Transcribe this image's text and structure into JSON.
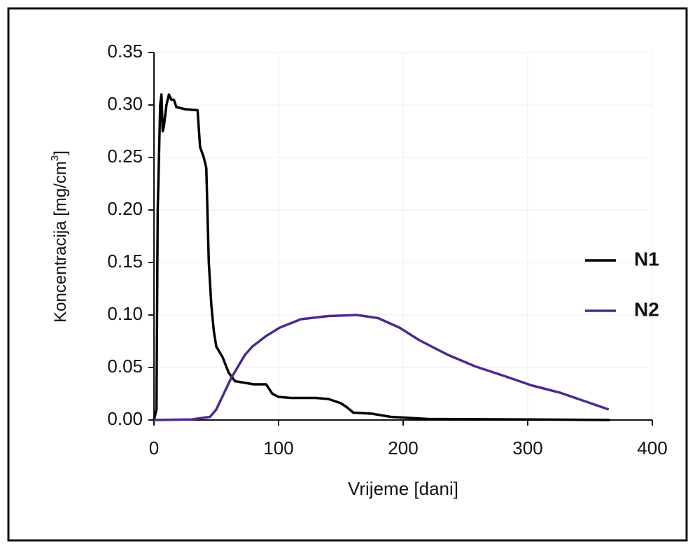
{
  "chart_data": {
    "type": "line",
    "xlabel": "Vrijeme [dani]",
    "ylabel": [
      "Koncentracija [mg/cm",
      "3",
      "]"
    ],
    "xlim": [
      0,
      400
    ],
    "xticks": [
      0,
      100,
      200,
      300,
      400
    ],
    "ylim": [
      0,
      0.35
    ],
    "yticks": [
      {
        "value": 0,
        "label": "0.00"
      },
      0.05,
      {
        "value": 0.1,
        "label": "0.10"
      },
      0.15,
      {
        "value": 0.2,
        "label": "0.20"
      },
      0.25,
      {
        "value": 0.3,
        "label": "0.30"
      },
      0.35
    ],
    "grid": true,
    "legend": "right",
    "series": [
      {
        "name": "N1",
        "color": "#000000",
        "x": [
          0,
          2,
          3,
          5,
          6,
          7,
          8,
          10,
          12,
          14,
          16,
          18,
          25,
          35,
          37,
          40,
          42,
          44,
          46,
          48,
          50,
          55,
          60,
          65,
          70,
          80,
          90,
          95,
          100,
          110,
          130,
          140,
          150,
          155,
          160,
          175,
          190,
          220,
          300,
          366
        ],
        "values": [
          0,
          0.01,
          0.2,
          0.3,
          0.31,
          0.275,
          0.28,
          0.3,
          0.31,
          0.305,
          0.305,
          0.298,
          0.296,
          0.295,
          0.26,
          0.25,
          0.24,
          0.15,
          0.11,
          0.085,
          0.07,
          0.06,
          0.045,
          0.037,
          0.036,
          0.034,
          0.034,
          0.025,
          0.022,
          0.021,
          0.021,
          0.02,
          0.016,
          0.012,
          0.007,
          0.006,
          0.003,
          0.001,
          0.0005,
          0
        ]
      },
      {
        "name": "N2",
        "color": "#4b2a8c",
        "x": [
          0,
          30,
          45,
          50,
          56,
          62,
          67,
          73,
          79,
          90,
          101,
          118,
          140,
          163,
          180,
          197,
          213,
          236,
          258,
          281,
          303,
          326,
          348,
          365
        ],
        "values": [
          0,
          0.0005,
          0.003,
          0.01,
          0.025,
          0.04,
          0.05,
          0.062,
          0.07,
          0.08,
          0.088,
          0.096,
          0.099,
          0.1,
          0.097,
          0.088,
          0.076,
          0.062,
          0.051,
          0.042,
          0.033,
          0.026,
          0.017,
          0.01
        ]
      }
    ]
  }
}
